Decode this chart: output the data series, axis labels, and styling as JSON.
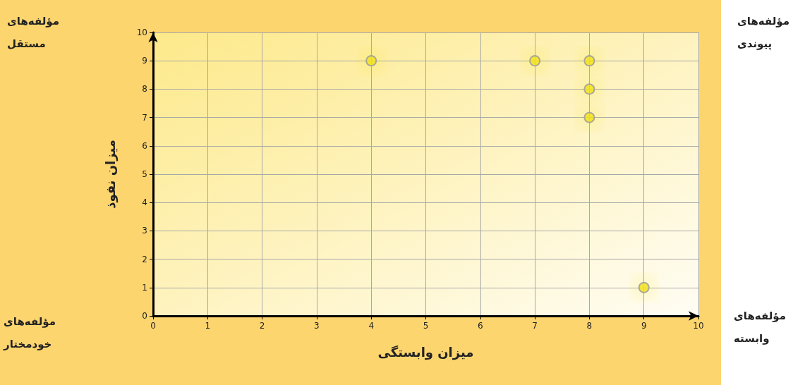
{
  "chart_data": {
    "type": "scatter",
    "xlabel": "میزان وابستگی",
    "ylabel": "میزان نفوذ",
    "x": [
      4,
      7,
      8,
      8,
      8,
      9
    ],
    "values": [
      9,
      9,
      9,
      8,
      7,
      1
    ],
    "color": "#f2e21a",
    "marker": "circle",
    "xlim": [
      0,
      10
    ],
    "xticks": [
      0,
      1,
      2,
      3,
      4,
      5,
      6,
      7,
      8,
      9,
      10
    ],
    "ylim": [
      0,
      10
    ],
    "yticks": [
      0,
      1,
      2,
      3,
      4,
      5,
      6,
      7,
      8,
      9,
      10
    ],
    "grid": true,
    "annotations": [
      "مؤلفه‌های مستقل",
      "مؤلفه‌های پیوندی",
      "مؤلفه‌های خودمختار",
      "مؤلفه‌های وابسته"
    ]
  }
}
